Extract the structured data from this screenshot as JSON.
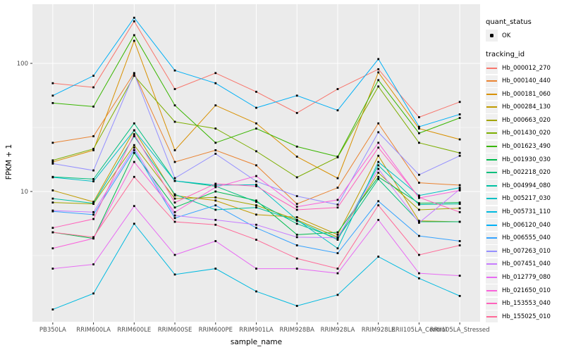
{
  "chart_data": {
    "type": "line",
    "title": "",
    "xlabel": "sample_name",
    "ylabel": "FPKM + 1",
    "y_scale": "log10",
    "y_ticks": [
      100,
      10
    ],
    "y_tick_labels": [
      "100",
      "10"
    ],
    "y_minor_ticks": [
      31.62,
      3.162
    ],
    "ylim": [
      0.96,
      290
    ],
    "grid": true,
    "legend_position": "right",
    "legend": {
      "quant_status": {
        "title": "quant_status",
        "items": [
          {
            "label": "OK",
            "marker": "small-black-point"
          }
        ]
      },
      "tracking_id": {
        "title": "tracking_id"
      }
    },
    "categories": [
      "PB350LA",
      "RRIM600LA",
      "RRIM600LE",
      "RRIM600SE",
      "RRIM600PE",
      "RRIM901LA",
      "RRIM928BA",
      "RRIM928LA",
      "RRIM928LE",
      "RRII105LA_Control",
      "RRII105LA_Stressed"
    ],
    "series": [
      {
        "name": "Hb_000012_270",
        "color": "#F8766D",
        "quant_status": "OK",
        "values": [
          70,
          65,
          213,
          63,
          84,
          60,
          41,
          63,
          90,
          38,
          50
        ]
      },
      {
        "name": "Hb_000140_440",
        "color": "#EA8331",
        "quant_status": "OK",
        "values": [
          24,
          27,
          84,
          17,
          21,
          16,
          8,
          10.7,
          34,
          11.7,
          11.2
        ]
      },
      {
        "name": "Hb_000181_060",
        "color": "#D89000",
        "quant_status": "OK",
        "values": [
          17,
          21,
          150,
          21,
          47,
          34,
          18.7,
          12.7,
          85,
          31,
          25.5
        ]
      },
      {
        "name": "Hb_000284_130",
        "color": "#C09B00",
        "quant_status": "OK",
        "values": [
          10.2,
          8.3,
          30,
          9.3,
          8.5,
          6.6,
          6.3,
          4.6,
          19,
          5.9,
          5.8
        ]
      },
      {
        "name": "Hb_000663_020",
        "color": "#A3A500",
        "quant_status": "OK",
        "values": [
          8.2,
          8,
          23,
          8.8,
          9,
          7.8,
          6,
          4.4,
          14,
          7.2,
          7.4
        ]
      },
      {
        "name": "Hb_001430_020",
        "color": "#7CAE00",
        "quant_status": "OK",
        "values": [
          17.5,
          21.5,
          80,
          35,
          31,
          20.6,
          12.9,
          18.5,
          66,
          24,
          20
        ]
      },
      {
        "name": "Hb_001623_490",
        "color": "#39B600",
        "quant_status": "OK",
        "values": [
          49,
          46,
          166,
          47,
          24,
          31,
          22.4,
          18.7,
          74,
          28.5,
          37.5
        ]
      },
      {
        "name": "Hb_001930_030",
        "color": "#00BB4E",
        "quant_status": "OK",
        "values": [
          4.8,
          4.3,
          20,
          7.5,
          10,
          8.5,
          4.6,
          4.8,
          13,
          8.1,
          8.2
        ]
      },
      {
        "name": "Hb_002218_020",
        "color": "#00BF7D",
        "quant_status": "OK",
        "values": [
          13,
          12.5,
          34,
          12.1,
          11,
          8.3,
          5.6,
          4.3,
          12.5,
          5.8,
          5.8
        ]
      },
      {
        "name": "Hb_004994_080",
        "color": "#00C1A3",
        "quant_status": "OK",
        "values": [
          8.8,
          8.1,
          27,
          9.5,
          7.2,
          7.5,
          5.9,
          4.2,
          16,
          7.9,
          8
        ]
      },
      {
        "name": "Hb_005217_030",
        "color": "#00BFC4",
        "quant_status": "OK",
        "values": [
          12.9,
          12,
          30,
          12.1,
          11.2,
          11.3,
          6,
          3.6,
          17,
          9.3,
          10.7
        ]
      },
      {
        "name": "Hb_005731_110",
        "color": "#00BAE0",
        "quant_status": "OK",
        "values": [
          1.2,
          1.6,
          5.6,
          2.25,
          2.5,
          1.66,
          1.28,
          1.56,
          3.1,
          2.1,
          1.53
        ]
      },
      {
        "name": "Hb_006120_040",
        "color": "#00B0F6",
        "quant_status": "OK",
        "values": [
          56,
          80,
          227,
          88,
          70,
          45,
          56,
          43,
          108,
          32,
          40
        ]
      },
      {
        "name": "Hb_006555_040",
        "color": "#35A2FF",
        "quant_status": "OK",
        "values": [
          7,
          6.6,
          21,
          6.2,
          7.8,
          5.2,
          3.8,
          3.3,
          8.4,
          4.5,
          4.1
        ]
      },
      {
        "name": "Hb_007263_010",
        "color": "#9590FF",
        "quant_status": "OK",
        "values": [
          16.5,
          14.6,
          83,
          12.7,
          19.7,
          12,
          9.2,
          7.9,
          29,
          13.5,
          19
        ]
      },
      {
        "name": "Hb_007451_040",
        "color": "#C77CFF",
        "quant_status": "OK",
        "values": [
          7.1,
          6.9,
          22,
          6.5,
          6,
          5.5,
          4.4,
          4.35,
          15,
          5.7,
          10.4
        ]
      },
      {
        "name": "Hb_012779_080",
        "color": "#E76BF3",
        "quant_status": "OK",
        "values": [
          2.5,
          2.7,
          7.7,
          3.2,
          4.1,
          2.5,
          2.5,
          2.3,
          6,
          2.3,
          2.2
        ]
      },
      {
        "name": "Hb_021650_010",
        "color": "#FA62DB",
        "quant_status": "OK",
        "values": [
          3.6,
          4.3,
          17,
          6.9,
          10.8,
          13.2,
          7.6,
          8.6,
          24,
          8.9,
          10.2
        ]
      },
      {
        "name": "Hb_153553_040",
        "color": "#FF62BC",
        "quant_status": "OK",
        "values": [
          5.2,
          6.1,
          28,
          8.2,
          11.5,
          11,
          7.2,
          7.5,
          22,
          9,
          6.9
        ]
      },
      {
        "name": "Hb_155025_010",
        "color": "#FF6A98",
        "quant_status": "OK",
        "values": [
          4.8,
          4.4,
          13,
          5.8,
          5.5,
          4.2,
          3,
          2.5,
          7.8,
          3.2,
          3.8
        ]
      }
    ],
    "colors": {
      "panel_bg": "#EBEBEB",
      "grid": "#FFFFFF",
      "marker": "#000000",
      "tick_text": "#4D4D4D",
      "axis_tick": "#333333",
      "legend_key_bg": "#F0F0F0",
      "background": "#FFFFFF"
    }
  }
}
